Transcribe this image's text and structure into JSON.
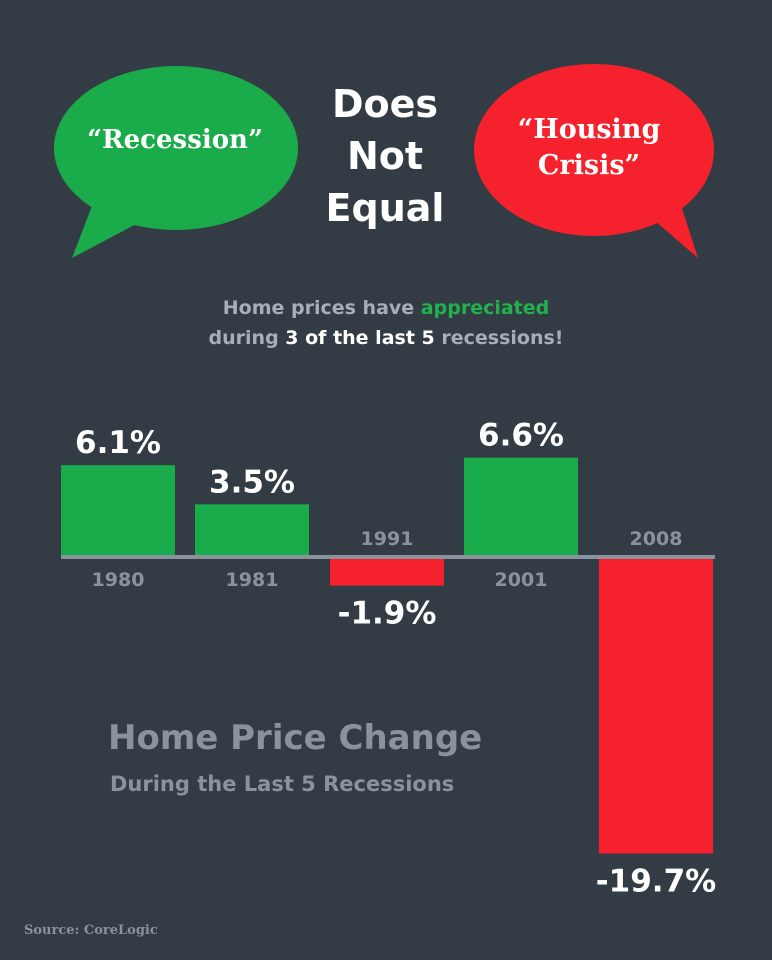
{
  "bubbles": {
    "left": {
      "text": "“Recession”",
      "color": "#1aab4b"
    },
    "right": {
      "line1": "“Housing",
      "line2": "Crisis”",
      "color": "#f5222d"
    }
  },
  "center": {
    "line1": "Does",
    "line2": "Not",
    "line3": "Equal"
  },
  "subtitle": {
    "line1_a": "Home prices have",
    "line1_b": "appreciated",
    "line2_a": "during",
    "line2_b": "3 of the last 5",
    "line2_c": "recessions!"
  },
  "colors": {
    "positive": "#1aab4b",
    "negative": "#f5222d",
    "axis": "#8a939d",
    "background": "#333b45"
  },
  "chart_data": {
    "type": "bar",
    "categories": [
      "1980",
      "1981",
      "1991",
      "2001",
      "2008"
    ],
    "values": [
      6.1,
      3.5,
      -1.9,
      6.6,
      -19.7
    ],
    "value_labels": [
      "6.1%",
      "3.5%",
      "-1.9%",
      "6.6%",
      "-19.7%"
    ],
    "title": "Home Price Change",
    "subtitle": "During the Last 5 Recessions",
    "xlabel": "",
    "ylabel": "",
    "grid": false,
    "legend": "none"
  },
  "source": "Source: CoreLogic"
}
